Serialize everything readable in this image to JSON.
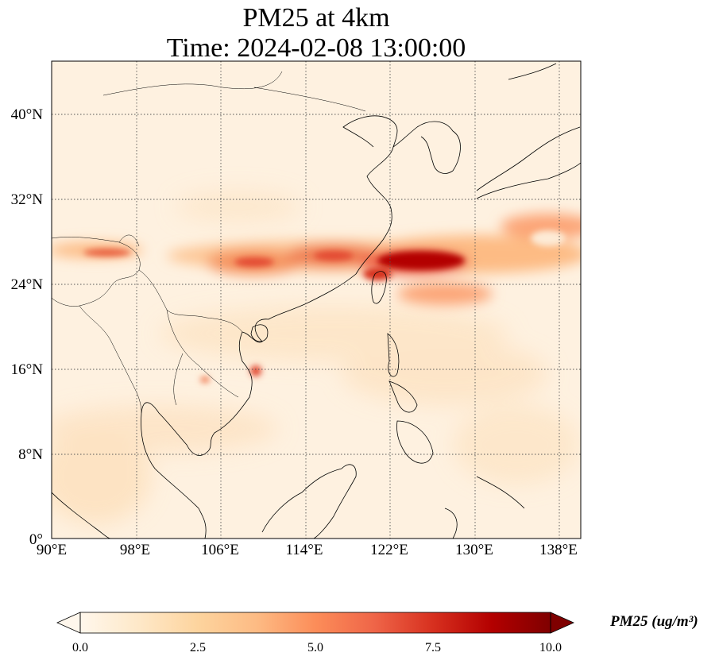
{
  "title": {
    "line1": "PM25 at 4km",
    "line2": "Time: 2024-02-08 13:00:00"
  },
  "map": {
    "lon_range": [
      90,
      140
    ],
    "lat_range": [
      0,
      45
    ],
    "lon_ticks": [
      90,
      98,
      106,
      114,
      122,
      130,
      138
    ],
    "lat_ticks": [
      0,
      8,
      16,
      24,
      32,
      40
    ],
    "lon_tick_labels": [
      "90°E",
      "98°E",
      "106°E",
      "114°E",
      "122°E",
      "130°E",
      "138°E"
    ],
    "lat_tick_labels": [
      "0°",
      "8°N",
      "16°N",
      "24°N",
      "32°N",
      "40°N"
    ],
    "gridlines": true,
    "colormap": "OrRd",
    "features": [
      "coastlines",
      "country borders",
      "pollution plume along ~26°N"
    ]
  },
  "colorbar": {
    "label": "PM25 (ug/m³)",
    "range": [
      0,
      10
    ],
    "ticks": [
      0.0,
      2.5,
      5.0,
      7.5,
      10.0
    ],
    "tick_labels": [
      "0.0",
      "2.5",
      "5.0",
      "7.5",
      "10.0"
    ],
    "extend": "both",
    "colors": [
      "#fff7ec",
      "#fee8c8",
      "#fdd49e",
      "#fdbb84",
      "#fc8d59",
      "#ef6548",
      "#d7301f",
      "#b30000",
      "#7f0000"
    ]
  }
}
